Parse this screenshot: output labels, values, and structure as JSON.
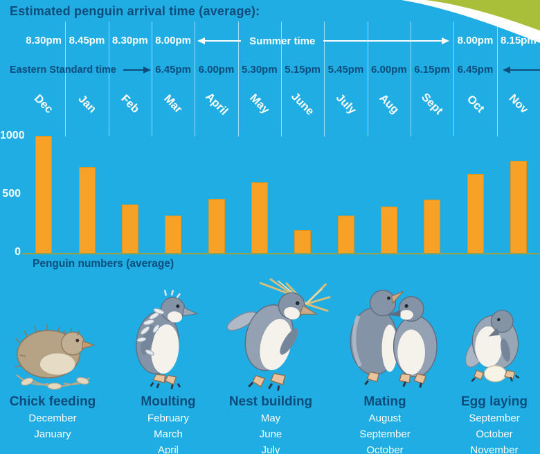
{
  "title": "Estimated penguin arrival time (average):",
  "summer_row": {
    "label": "Summer time",
    "left_times": [
      "8.30pm",
      "8.45pm",
      "8.30pm",
      "8.00pm"
    ],
    "right_times": [
      "8.00pm",
      "8.15pm"
    ]
  },
  "est_row": {
    "label": "Eastern Standard time",
    "times": [
      "6.45pm",
      "6.00pm",
      "5.30pm",
      "5.15pm",
      "5.45pm",
      "6.00pm",
      "6.15pm",
      "6.45pm"
    ]
  },
  "chart_data": {
    "type": "bar",
    "title": "Estimated penguin arrival time (average):",
    "categories": [
      "Dec",
      "Jan",
      "Feb",
      "Mar",
      "April",
      "May",
      "June",
      "July",
      "Aug",
      "Sept",
      "Oct",
      "Nov"
    ],
    "values": [
      1010,
      745,
      420,
      330,
      470,
      615,
      200,
      325,
      405,
      465,
      685,
      800
    ],
    "xlabel": "",
    "ylabel": "Penguin numbers (average)",
    "yticks": [
      0,
      500,
      1000
    ],
    "ylim": [
      0,
      1100
    ],
    "legend": "none",
    "grid": "vertical column separators only",
    "bar_color": "#f7a227"
  },
  "stages": [
    {
      "name": "Chick feeding",
      "months": [
        "December",
        "January"
      ],
      "illustration": "penguin-chick"
    },
    {
      "name": "Moulting",
      "months": [
        "February",
        "March",
        "April"
      ],
      "illustration": "penguin-moulting"
    },
    {
      "name": "Nest building",
      "months": [
        "May",
        "June",
        "July"
      ],
      "illustration": "penguin-nest-building"
    },
    {
      "name": "Mating",
      "months": [
        "August",
        "September",
        "October"
      ],
      "illustration": "penguin-mating-pair"
    },
    {
      "name": "Egg laying",
      "months": [
        "September",
        "October",
        "November"
      ],
      "illustration": "penguin-egg-laying"
    }
  ],
  "colors": {
    "background": "#1fade3",
    "bar": "#f7a227",
    "navy_text": "#0d4c7b",
    "white_text": "#ffffff",
    "swoosh_green": "#a9be39",
    "axis_line": "#97a04b"
  }
}
